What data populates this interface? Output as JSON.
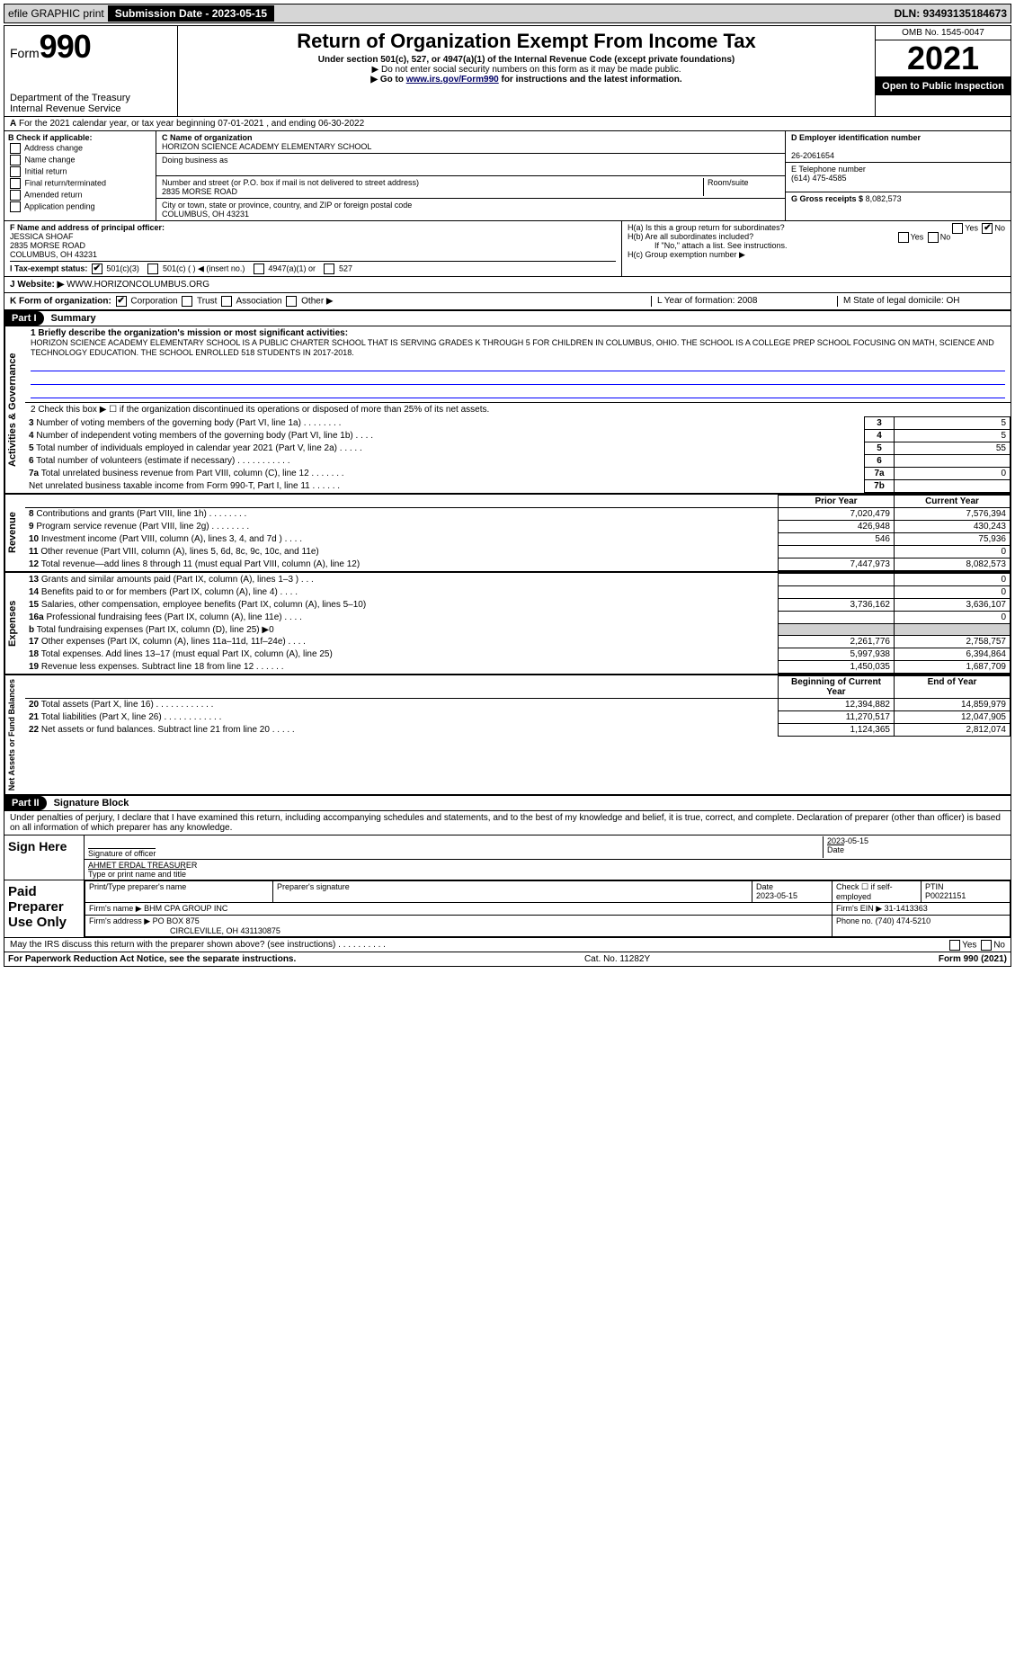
{
  "topbar": {
    "efile": "efile GRAPHIC print",
    "subdate_lbl": "Submission Date - 2023-05-15",
    "dln": "DLN: 93493135184673"
  },
  "header": {
    "form_prefix": "Form",
    "form_no": "990",
    "dept": "Department of the Treasury\nInternal Revenue Service",
    "title": "Return of Organization Exempt From Income Tax",
    "sub1": "Under section 501(c), 527, or 4947(a)(1) of the Internal Revenue Code (except private foundations)",
    "sub2": "▶ Do not enter social security numbers on this form as it may be made public.",
    "sub3_pre": "▶ Go to ",
    "sub3_link": "www.irs.gov/Form990",
    "sub3_post": " for instructions and the latest information.",
    "omb": "OMB No. 1545-0047",
    "year": "2021",
    "open": "Open to Public Inspection"
  },
  "rowA": "For the 2021 calendar year, or tax year beginning 07-01-2021     , and ending 06-30-2022",
  "B": {
    "title": "B Check if applicable:",
    "opts": [
      "Address change",
      "Name change",
      "Initial return",
      "Final return/terminated",
      "Amended return",
      "Application pending"
    ]
  },
  "C": {
    "name_lbl": "C Name of organization",
    "name": "HORIZON SCIENCE ACADEMY ELEMENTARY SCHOOL",
    "dba_lbl": "Doing business as",
    "dba": "",
    "street_lbl": "Number and street (or P.O. box if mail is not delivered to street address)",
    "room_lbl": "Room/suite",
    "street": "2835 MORSE ROAD",
    "city_lbl": "City or town, state or province, country, and ZIP or foreign postal code",
    "city": "COLUMBUS, OH  43231"
  },
  "D": {
    "lbl": "D Employer identification number",
    "val": "26-2061654"
  },
  "E": {
    "lbl": "E Telephone number",
    "val": "(614) 475-4585"
  },
  "G": {
    "lbl": "G Gross receipts $",
    "val": "8,082,573"
  },
  "F": {
    "lbl": "F Name and address of principal officer:",
    "name": "JESSICA SHOAF",
    "addr1": "2835 MORSE ROAD",
    "addr2": "COLUMBUS, OH  43231"
  },
  "H": {
    "a": "H(a)  Is this a group return for subordinates?",
    "b": "H(b)  Are all subordinates included?",
    "b2": "If \"No,\" attach a list. See instructions.",
    "c": "H(c)  Group exemption number ▶"
  },
  "I": {
    "lbl": "I   Tax-exempt status:",
    "opts": [
      "501(c)(3)",
      "501(c) (  ) ◀ (insert no.)",
      "4947(a)(1) or",
      "527"
    ]
  },
  "J": {
    "lbl": "J   Website: ▶",
    "val": "WWW.HORIZONCOLUMBUS.ORG"
  },
  "K": {
    "lbl": "K Form of organization:",
    "opts": [
      "Corporation",
      "Trust",
      "Association",
      "Other ▶"
    ]
  },
  "L": {
    "l": "L Year of formation: 2008",
    "m": "M State of legal domicile: OH"
  },
  "part1": {
    "title": "Part I",
    "name": "Summary",
    "q1": "1  Briefly describe the organization's mission or most significant activities:",
    "mission": "HORIZON SCIENCE ACADEMY ELEMENTARY SCHOOL IS A PUBLIC CHARTER SCHOOL THAT IS SERVING GRADES K THROUGH 5 FOR CHILDREN IN COLUMBUS, OHIO. THE SCHOOL IS A COLLEGE PREP SCHOOL FOCUSING ON MATH, SCIENCE AND TECHNOLOGY EDUCATION. THE SCHOOL ENROLLED 518 STUDENTS IN 2017-2018.",
    "q2": "2   Check this box ▶ ☐ if the organization discontinued its operations or disposed of more than 25% of its net assets.",
    "rows_simple": [
      {
        "n": "3",
        "t": "Number of voting members of the governing body (Part VI, line 1a)   .    .    .    .    .    .    .    .",
        "b": "3",
        "v": "5"
      },
      {
        "n": "4",
        "t": "Number of independent voting members of the governing body (Part VI, line 1b)    .    .    .    .",
        "b": "4",
        "v": "5"
      },
      {
        "n": "5",
        "t": "Total number of individuals employed in calendar year 2021 (Part V, line 2a)   .    .    .    .    .",
        "b": "5",
        "v": "55"
      },
      {
        "n": "6",
        "t": "Total number of volunteers (estimate if necessary)    .    .    .    .    .    .    .    .    .    .    .",
        "b": "6",
        "v": ""
      },
      {
        "n": "7a",
        "t": "Total unrelated business revenue from Part VIII, column (C), line 12    .    .    .    .    .    .    .",
        "b": "7a",
        "v": "0"
      },
      {
        "n": "",
        "t": "Net unrelated business taxable income from Form 990-T, Part I, line 11    .    .    .    .    .    .",
        "b": "7b",
        "v": ""
      }
    ],
    "hdr_prior": "Prior Year",
    "hdr_curr": "Current Year",
    "revenue": [
      {
        "n": "8",
        "t": "Contributions and grants (Part VIII, line 1h)   .    .    .    .    .    .    .    .",
        "p": "7,020,479",
        "c": "7,576,394"
      },
      {
        "n": "9",
        "t": "Program service revenue (Part VIII, line 2g)   .    .    .    .    .    .    .    .",
        "p": "426,948",
        "c": "430,243"
      },
      {
        "n": "10",
        "t": "Investment income (Part VIII, column (A), lines 3, 4, and 7d )   .    .    .    .",
        "p": "546",
        "c": "75,936"
      },
      {
        "n": "11",
        "t": "Other revenue (Part VIII, column (A), lines 5, 6d, 8c, 9c, 10c, and 11e)",
        "p": "",
        "c": "0"
      },
      {
        "n": "12",
        "t": "Total revenue—add lines 8 through 11 (must equal Part VIII, column (A), line 12)",
        "p": "7,447,973",
        "c": "8,082,573"
      }
    ],
    "expenses": [
      {
        "n": "13",
        "t": "Grants and similar amounts paid (Part IX, column (A), lines 1–3 )   .    .    .",
        "p": "",
        "c": "0"
      },
      {
        "n": "14",
        "t": "Benefits paid to or for members (Part IX, column (A), line 4)   .    .    .    .",
        "p": "",
        "c": "0"
      },
      {
        "n": "15",
        "t": "Salaries, other compensation, employee benefits (Part IX, column (A), lines 5–10)",
        "p": "3,736,162",
        "c": "3,636,107"
      },
      {
        "n": "16a",
        "t": "Professional fundraising fees (Part IX, column (A), line 11e)   .    .    .    .",
        "p": "",
        "c": "0"
      },
      {
        "n": "b",
        "t": "Total fundraising expenses (Part IX, column (D), line 25) ▶0",
        "p": "GREY",
        "c": "GREY"
      },
      {
        "n": "17",
        "t": "Other expenses (Part IX, column (A), lines 11a–11d, 11f–24e)   .    .    .    .",
        "p": "2,261,776",
        "c": "2,758,757"
      },
      {
        "n": "18",
        "t": "Total expenses. Add lines 13–17 (must equal Part IX, column (A), line 25)",
        "p": "5,997,938",
        "c": "6,394,864"
      },
      {
        "n": "19",
        "t": "Revenue less expenses. Subtract line 18 from line 12   .    .    .    .    .    .",
        "p": "1,450,035",
        "c": "1,687,709"
      }
    ],
    "hdr_boy": "Beginning of Current Year",
    "hdr_eoy": "End of Year",
    "netassets": [
      {
        "n": "20",
        "t": "Total assets (Part X, line 16)   .    .    .    .    .    .    .    .    .    .    .    .",
        "p": "12,394,882",
        "c": "14,859,979"
      },
      {
        "n": "21",
        "t": "Total liabilities (Part X, line 26)   .    .    .    .    .    .    .    .    .    .    .    .",
        "p": "11,270,517",
        "c": "12,047,905"
      },
      {
        "n": "22",
        "t": "Net assets or fund balances. Subtract line 21 from line 20   .    .    .    .    .",
        "p": "1,124,365",
        "c": "2,812,074"
      }
    ]
  },
  "part2": {
    "title": "Part II",
    "name": "Signature Block",
    "decl": "Under penalties of perjury, I declare that I have examined this return, including accompanying schedules and statements, and to the best of my knowledge and belief, it is true, correct, and complete. Declaration of preparer (other than officer) is based on all information of which preparer has any knowledge."
  },
  "sign": {
    "here": "Sign Here",
    "sig_off": "Signature of officer",
    "date": "2023-05-15",
    "date_lbl": "Date",
    "name": "AHMET ERDAL TREASURER",
    "name_lbl": "Type or print name and title"
  },
  "paid": {
    "lbl": "Paid Preparer Use Only",
    "h_name": "Print/Type preparer's name",
    "h_sig": "Preparer's signature",
    "h_date": "Date",
    "date": "2023-05-15",
    "h_check": "Check ☐ if self-employed",
    "h_ptin": "PTIN",
    "ptin": "P00221151",
    "firm_name_lbl": "Firm's name    ▶",
    "firm_name": "BHM CPA GROUP INC",
    "firm_ein_lbl": "Firm's EIN ▶",
    "firm_ein": "31-1413363",
    "firm_addr_lbl": "Firm's address ▶",
    "firm_addr": "PO BOX 875",
    "firm_addr2": "CIRCLEVILLE, OH  431130875",
    "phone_lbl": "Phone no.",
    "phone": "(740) 474-5210"
  },
  "may_irs": "May the IRS discuss this return with the preparer shown above? (see instructions)    .    .    .    .    .    .    .    .    .    .",
  "footer": {
    "l": "For Paperwork Reduction Act Notice, see the separate instructions.",
    "m": "Cat. No. 11282Y",
    "r": "Form 990 (2021)"
  },
  "labels": {
    "vert1": "Activities & Governance",
    "vert2": "Revenue",
    "vert3": "Expenses",
    "vert4": "Net Assets or Fund Balances"
  }
}
